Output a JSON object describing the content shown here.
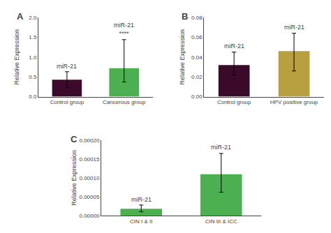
{
  "chart_data": [
    {
      "type": "bar",
      "title": "A",
      "categories": [
        "Control group",
        "Cancerous group"
      ],
      "values": [
        0.43,
        0.72
      ],
      "errors_upper": [
        0.2,
        0.72
      ],
      "errors_lower": [
        0.2,
        0.35
      ],
      "colors": [
        "#3b0a2a",
        "#4caf50"
      ],
      "ylim": [
        0.0,
        2.0
      ],
      "yticks": [
        {
          "value": 0.0,
          "label": "0.0"
        },
        0.5,
        {
          "value": 1.0,
          "label": "1.0"
        },
        1.5,
        {
          "value": 2.0,
          "label": "2.0"
        }
      ],
      "ylabel": "Relative Expression",
      "annotations": [
        {
          "category": "Control group",
          "y": 0.65,
          "text": "miR-21"
        },
        {
          "category": "Cancerous group",
          "y": 1.47,
          "text": "miR-21\n****"
        }
      ],
      "grid": false
    },
    {
      "type": "bar",
      "title": "B",
      "categories": [
        "Control group",
        "HPV positive group"
      ],
      "values": [
        0.032,
        0.046
      ],
      "errors_upper": [
        0.013,
        0.018
      ],
      "errors_lower": [
        0.01,
        0.02
      ],
      "colors": [
        "#3b0a2a",
        "#b8a040"
      ],
      "ylim": [
        0.0,
        0.08
      ],
      "yticks": [
        {
          "value": 0.0,
          "label": "0.00"
        },
        0.02,
        0.04,
        0.06,
        0.08
      ],
      "ylabel": "Relative Expression",
      "annotations": [
        {
          "category": "Control group",
          "y": 0.046,
          "text": "miR-21"
        },
        {
          "category": "HPV positive group",
          "y": 0.065,
          "text": "miR-21"
        }
      ],
      "grid": false
    },
    {
      "type": "bar",
      "title": "C",
      "categories": [
        "CIN I & II",
        "CIN III & ICC"
      ],
      "values": [
        1.8e-05,
        0.00011
      ],
      "errors_upper": [
        1e-05,
        5.5e-05
      ],
      "errors_lower": [
        8e-06,
        4.8e-05
      ],
      "colors": [
        "#4caf50",
        "#4caf50"
      ],
      "ylim": [
        0.0,
        0.0002
      ],
      "yticks": [
        {
          "value": 0.0,
          "label": "0.00000"
        },
        {
          "value": 5e-05,
          "label": "0.00005"
        },
        {
          "value": 0.0001,
          "label": "0.00010"
        },
        {
          "value": 0.00015,
          "label": "0.00015"
        },
        {
          "value": 0.0002,
          "label": "0.00020"
        }
      ],
      "ylabel": "Relative Expression",
      "annotations": [
        {
          "category": "CIN I & II",
          "y": 3e-05,
          "text": "miR-21"
        },
        {
          "category": "CIN III & ICC",
          "y": 0.000168,
          "text": "miR-21"
        }
      ],
      "grid": false
    }
  ]
}
